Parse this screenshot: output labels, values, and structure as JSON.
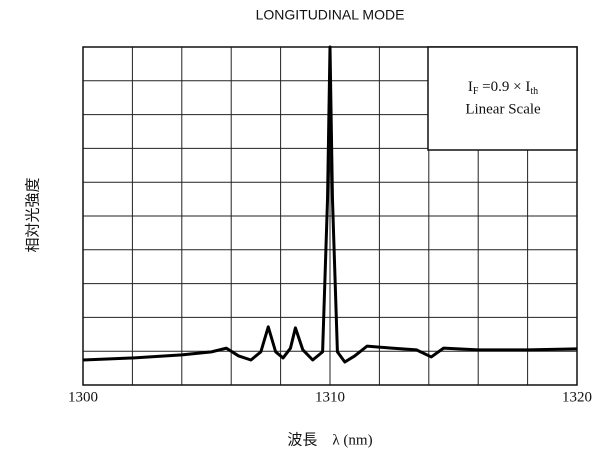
{
  "chart_data": {
    "type": "line",
    "title": "LONGITUDINAL MODE",
    "xlabel": "波長　λ (nm)",
    "ylabel": "相対光強度",
    "annotation": {
      "formula": [
        "I",
        "F",
        " =0.9 × I",
        "th"
      ],
      "note": "Linear Scale"
    },
    "xlim": [
      1300,
      1320
    ],
    "xticks": [
      1300,
      1310,
      1320
    ],
    "ylim": [
      0,
      10
    ],
    "xgrid": [
      1300,
      1302,
      1304,
      1306,
      1308,
      1310,
      1312,
      1314,
      1316,
      1318,
      1320
    ],
    "ygrid": [
      0,
      1,
      2,
      3,
      4,
      5,
      6,
      7,
      8,
      9,
      10
    ],
    "color": "#000000",
    "x": [
      1300,
      1302,
      1304,
      1305.2,
      1305.8,
      1306.3,
      1306.8,
      1307.2,
      1307.5,
      1307.8,
      1308.1,
      1308.4,
      1308.6,
      1308.9,
      1309.3,
      1309.7,
      1309.9,
      1310.0,
      1310.1,
      1310.3,
      1310.6,
      1311.0,
      1311.5,
      1312.5,
      1313.5,
      1314.1,
      1314.6,
      1316,
      1318,
      1320
    ],
    "values": [
      0.74,
      0.8,
      0.89,
      0.98,
      1.09,
      0.86,
      0.74,
      0.98,
      1.72,
      0.98,
      0.8,
      1.09,
      1.69,
      1.04,
      0.74,
      0.98,
      5.5,
      10,
      5.5,
      0.98,
      0.68,
      0.86,
      1.15,
      1.09,
      1.04,
      0.83,
      1.09,
      1.04,
      1.04,
      1.07
    ]
  }
}
